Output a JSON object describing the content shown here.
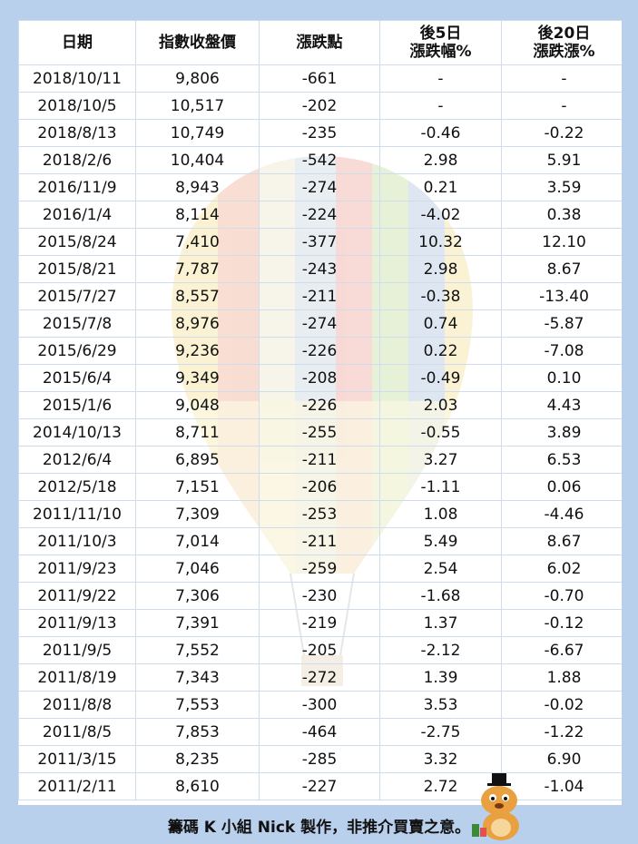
{
  "headers": [
    "日期",
    "指數收盤價",
    "漲跌點",
    "後5日\n漲跌幅%",
    "後20日\n漲跌漲%"
  ],
  "rows": [
    [
      "2018/10/11",
      "9,806",
      "-661",
      "-",
      "-"
    ],
    [
      "2018/10/5",
      "10,517",
      "-202",
      "-",
      "-"
    ],
    [
      "2018/8/13",
      "10,749",
      "-235",
      "-0.46",
      "-0.22"
    ],
    [
      "2018/2/6",
      "10,404",
      "-542",
      "2.98",
      "5.91"
    ],
    [
      "2016/11/9",
      "8,943",
      "-274",
      "0.21",
      "3.59"
    ],
    [
      "2016/1/4",
      "8,114",
      "-224",
      "-4.02",
      "0.38"
    ],
    [
      "2015/8/24",
      "7,410",
      "-377",
      "10.32",
      "12.10"
    ],
    [
      "2015/8/21",
      "7,787",
      "-243",
      "2.98",
      "8.67"
    ],
    [
      "2015/7/27",
      "8,557",
      "-211",
      "-0.38",
      "-13.40"
    ],
    [
      "2015/7/8",
      "8,976",
      "-274",
      "0.74",
      "-5.87"
    ],
    [
      "2015/6/29",
      "9,236",
      "-226",
      "0.22",
      "-7.08"
    ],
    [
      "2015/6/4",
      "9,349",
      "-208",
      "-0.49",
      "0.10"
    ],
    [
      "2015/1/6",
      "9,048",
      "-226",
      "2.03",
      "4.43"
    ],
    [
      "2014/10/13",
      "8,711",
      "-255",
      "-0.55",
      "3.89"
    ],
    [
      "2012/6/4",
      "6,895",
      "-211",
      "3.27",
      "6.53"
    ],
    [
      "2012/5/18",
      "7,151",
      "-206",
      "-1.11",
      "0.06"
    ],
    [
      "2011/11/10",
      "7,309",
      "-253",
      "1.08",
      "-4.46"
    ],
    [
      "2011/10/3",
      "7,014",
      "-211",
      "5.49",
      "8.67"
    ],
    [
      "2011/9/23",
      "7,046",
      "-259",
      "2.54",
      "6.02"
    ],
    [
      "2011/9/22",
      "7,306",
      "-230",
      "-1.68",
      "-0.70"
    ],
    [
      "2011/9/13",
      "7,391",
      "-219",
      "1.37",
      "-0.12"
    ],
    [
      "2011/9/5",
      "7,552",
      "-205",
      "-2.12",
      "-6.67"
    ],
    [
      "2011/8/19",
      "7,343",
      "-272",
      "1.39",
      "1.88"
    ],
    [
      "2011/8/8",
      "7,553",
      "-300",
      "3.53",
      "-0.02"
    ],
    [
      "2011/8/5",
      "7,853",
      "-464",
      "-2.75",
      "-1.22"
    ],
    [
      "2011/3/15",
      "8,235",
      "-285",
      "3.32",
      "6.90"
    ],
    [
      "2011/2/11",
      "8,610",
      "-227",
      "2.72",
      "-1.04"
    ]
  ],
  "footer": "籌碼 K 小組 Nick 製作，非推介買賣之意。",
  "colors": {
    "positive": "#ff1010",
    "negative": "#17a83a",
    "background": "#b9d0ec"
  },
  "decorations": {
    "watermark": "hot-air-balloon-icon",
    "mascot": "mascot-icon"
  }
}
